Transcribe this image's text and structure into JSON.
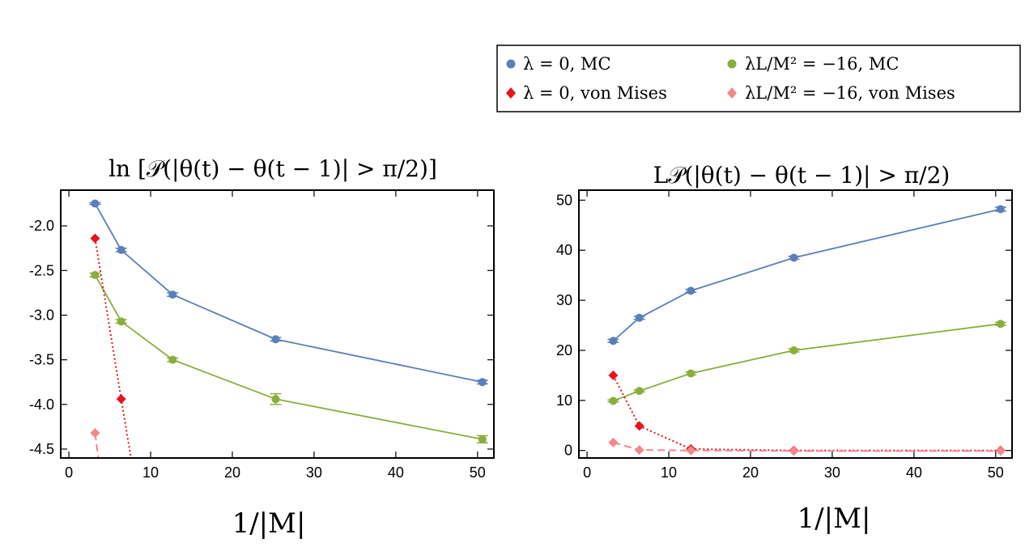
{
  "colors": {
    "mc0": "#5b7fb8",
    "mc16": "#8aad3c",
    "vm0": "#e8121d",
    "vm16": "#f5878c"
  },
  "legend": {
    "entries": [
      {
        "label": "λ = 0,  MC",
        "series_key": "mc0"
      },
      {
        "label": "λL/M² = −16,  MC",
        "series_key": "mc16"
      },
      {
        "label": "λ = 0,  von Mises",
        "series_key": "vm0"
      },
      {
        "label": "λL/M² = −16,  von Mises",
        "series_key": "vm16"
      }
    ]
  },
  "chart_data": [
    {
      "type": "line",
      "title": "ln [𝒫(|θ(t) − θ(t − 1)| > π/2)]",
      "xlabel": "1/|M|",
      "ylabel": "",
      "xlim": [
        -1,
        52
      ],
      "ylim": [
        -4.6,
        -1.6
      ],
      "xticks": [
        0,
        10,
        20,
        30,
        40,
        50
      ],
      "yticks": [
        -2.0,
        -2.5,
        -3.0,
        -3.5,
        -4.0,
        -4.5
      ],
      "ytick_labels": [
        "-2.0",
        "-2.5",
        "-3.0",
        "-3.5",
        "-4.0",
        "-4.5"
      ],
      "series": [
        {
          "name": "λ = 0, MC",
          "key": "mc0",
          "style": "solid",
          "marker": "circle",
          "x": [
            3.2,
            6.4,
            12.7,
            25.3,
            50.6
          ],
          "y": [
            -1.75,
            -2.27,
            -2.77,
            -3.27,
            -3.75
          ],
          "err": [
            0.01,
            0.02,
            0.02,
            0.02,
            0.02
          ]
        },
        {
          "name": "λL/M² = −16, MC",
          "key": "mc16",
          "style": "solid",
          "marker": "circle",
          "x": [
            3.2,
            6.4,
            12.7,
            25.3,
            50.6
          ],
          "y": [
            -2.55,
            -3.07,
            -3.5,
            -3.94,
            -4.39
          ],
          "err": [
            0.02,
            0.02,
            0.02,
            0.06,
            0.04
          ]
        },
        {
          "name": "λ = 0, von Mises",
          "key": "vm0",
          "style": "dotted",
          "marker": "diamond",
          "x": [
            3.2,
            6.4,
            7.6
          ],
          "y": [
            -2.14,
            -3.94,
            -4.6
          ],
          "marker_count": 2
        },
        {
          "name": "λL/M² = −16, von Mises",
          "key": "vm16",
          "style": "dashed",
          "marker": "diamond",
          "x": [
            3.2,
            3.6
          ],
          "y": [
            -4.32,
            -4.6
          ],
          "marker_count": 1
        }
      ]
    },
    {
      "type": "line",
      "title": "L𝒫(|θ(t) − θ(t − 1)| > π/2)",
      "xlabel": "1/|M|",
      "ylabel": "",
      "xlim": [
        -1,
        52
      ],
      "ylim": [
        -1.5,
        52
      ],
      "xticks": [
        0,
        10,
        20,
        30,
        40,
        50
      ],
      "yticks": [
        0,
        10,
        20,
        30,
        40,
        50
      ],
      "ytick_labels": [
        "0",
        "10",
        "20",
        "30",
        "40",
        "50"
      ],
      "series": [
        {
          "name": "λ = 0, MC",
          "key": "mc0",
          "style": "solid",
          "marker": "circle",
          "x": [
            3.2,
            6.4,
            12.7,
            25.3,
            50.6
          ],
          "y": [
            21.9,
            26.5,
            31.9,
            38.5,
            48.2
          ],
          "err": [
            0.3,
            0.3,
            0.3,
            0.3,
            0.4
          ]
        },
        {
          "name": "λL/M² = −16, MC",
          "key": "mc16",
          "style": "solid",
          "marker": "circle",
          "x": [
            3.2,
            6.4,
            12.7,
            25.3,
            50.6
          ],
          "y": [
            9.9,
            11.9,
            15.4,
            20.0,
            25.3
          ],
          "err": [
            0.2,
            0.2,
            0.3,
            0.3,
            0.3
          ]
        },
        {
          "name": "λ = 0, von Mises",
          "key": "vm0",
          "style": "dotted",
          "marker": "diamond",
          "x": [
            3.2,
            6.4,
            12.7,
            25.3,
            50.6
          ],
          "y": [
            15.0,
            4.9,
            0.3,
            0.0,
            0.0
          ]
        },
        {
          "name": "λL/M² = −16, von Mises",
          "key": "vm16",
          "style": "dashed",
          "marker": "diamond",
          "x": [
            3.2,
            6.4,
            12.7,
            25.3,
            50.6
          ],
          "y": [
            1.6,
            0.1,
            0.0,
            -0.1,
            -0.1
          ]
        }
      ]
    }
  ]
}
